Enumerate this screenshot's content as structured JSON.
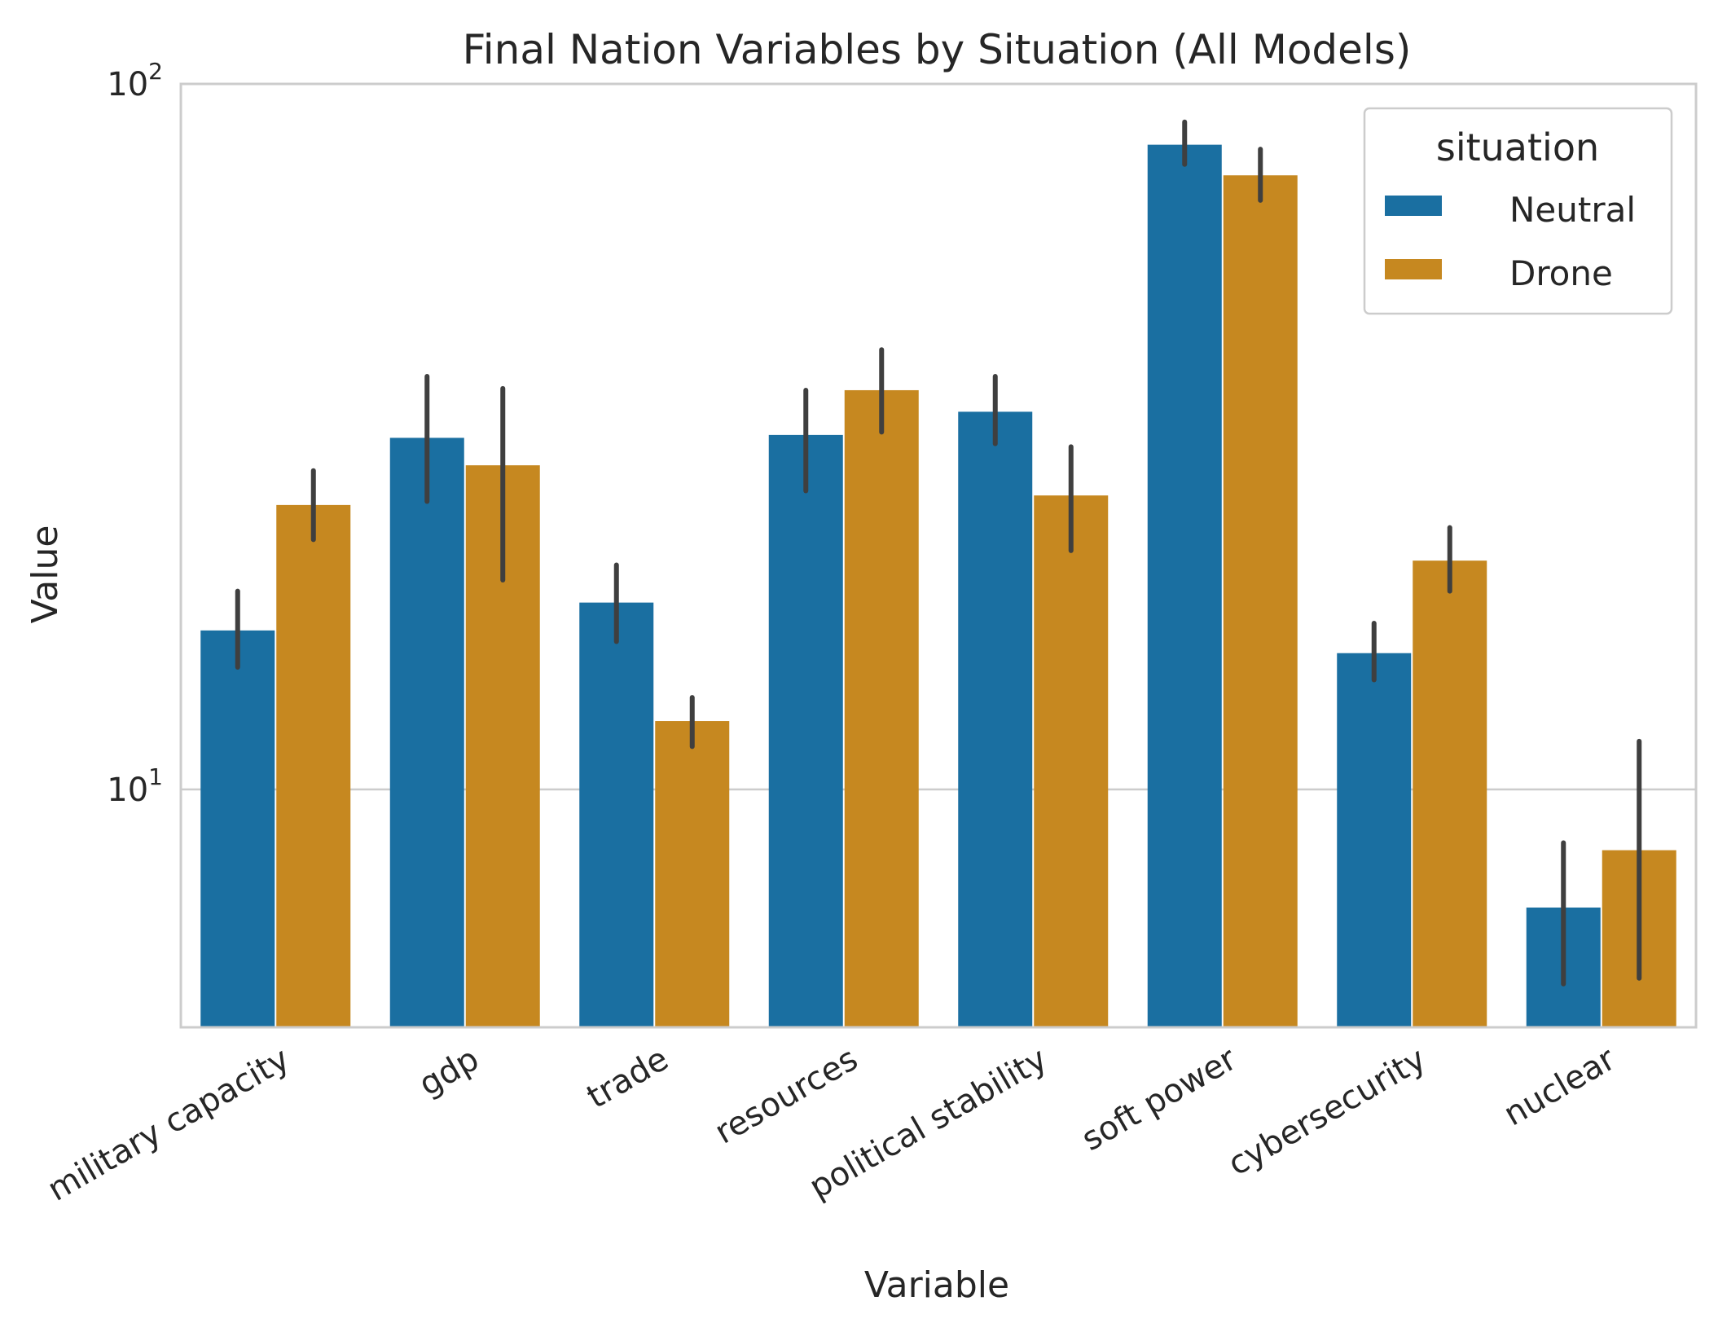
{
  "chart_data": {
    "type": "bar",
    "title": "Final Nation Variables by Situation (All Models)",
    "xlabel": "Variable",
    "ylabel": "Value",
    "yscale": "log",
    "ylim": [
      4.6,
      100
    ],
    "yticks": [
      {
        "value": 10,
        "base": "10",
        "exp": "1"
      },
      {
        "value": 100,
        "base": "10",
        "exp": "2"
      }
    ],
    "grid": true,
    "categories": [
      "military capacity",
      "gdp",
      "trade",
      "resources",
      "political stability",
      "soft power",
      "cybersecurity",
      "nuclear"
    ],
    "series": [
      {
        "name": "Neutral",
        "color": "#1a6fa1",
        "values": [
          16.8,
          31.5,
          18.4,
          31.8,
          34.3,
          82.0,
          15.6,
          6.8
        ],
        "err_low": [
          14.9,
          25.6,
          16.2,
          26.5,
          30.9,
          76.9,
          14.3,
          5.3
        ],
        "err_high": [
          19.1,
          38.5,
          20.8,
          36.8,
          38.5,
          88.3,
          17.2,
          8.4
        ]
      },
      {
        "name": "Drone",
        "color": "#c68820",
        "values": [
          25.3,
          28.8,
          12.5,
          36.8,
          26.1,
          74.2,
          21.1,
          8.2
        ],
        "err_low": [
          22.6,
          19.8,
          11.5,
          32.1,
          21.8,
          68.4,
          19.1,
          5.4
        ],
        "err_high": [
          28.3,
          37.0,
          13.5,
          42.0,
          30.6,
          80.8,
          23.5,
          11.7
        ]
      }
    ],
    "legend": {
      "title": "situation",
      "position": "top-right"
    }
  }
}
